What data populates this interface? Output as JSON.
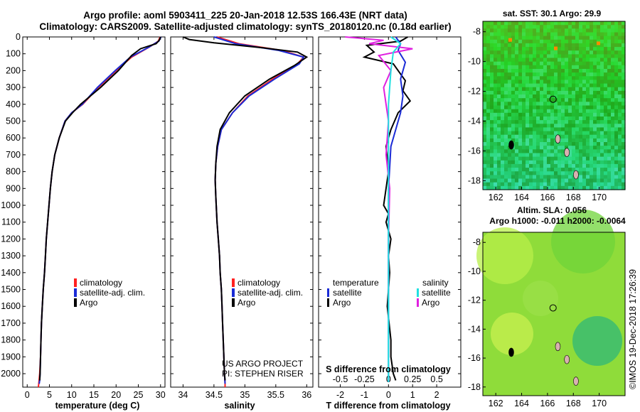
{
  "header": {
    "line1": "Argo profile: aoml 5903411_225 20-Jan-2018 12.53S 166.43E (NRT data)",
    "line2": "Climatology: CARS2009. Satellite-adjusted climatology: synTS_20180120.nc (0.18d earlier)"
  },
  "colors": {
    "climatology": "#ff2020",
    "satellite": "#1a2bd6",
    "argo": "#000000",
    "argo_salinity_diff": "#e020e0",
    "satellite_salinity_diff": "#20e0e0"
  },
  "chart_data": [
    {
      "type": "line",
      "id": "temperature",
      "xlabel": "temperature (deg C)",
      "ylabel": "",
      "xlim": [
        -1,
        31
      ],
      "ylim": [
        2080,
        0
      ],
      "xticks": [
        0,
        5,
        10,
        15,
        20,
        25,
        30
      ],
      "yticks": [
        0,
        100,
        200,
        300,
        400,
        500,
        600,
        700,
        800,
        900,
        1000,
        1100,
        1200,
        1300,
        1400,
        1500,
        1600,
        1700,
        1800,
        1900,
        2000
      ],
      "legend": [
        "climatology",
        "satellite-adj. clim.",
        "Argo"
      ],
      "series": [
        {
          "name": "climatology",
          "color": "#ff2020",
          "x": [
            29.9,
            29.5,
            27.5,
            23.5,
            20,
            16,
            12.5,
            10,
            8.5,
            7.2,
            6.2,
            5.6,
            5.2,
            4.9,
            4.6,
            4.3,
            4.1,
            3.9,
            3.6,
            3.4,
            3.2,
            3.1,
            3.0,
            2.8,
            2.6,
            2.5
          ],
          "y": [
            0,
            25,
            60,
            120,
            200,
            300,
            400,
            450,
            500,
            600,
            700,
            800,
            900,
            1000,
            1100,
            1200,
            1300,
            1400,
            1500,
            1600,
            1700,
            1800,
            1900,
            2000,
            2060,
            2080
          ]
        },
        {
          "name": "satellite-adj. clim.",
          "color": "#1a2bd6",
          "x": [
            30.1,
            29.6,
            27.4,
            23.2,
            19.8,
            15.8,
            12.4,
            10,
            8.5,
            7.2,
            6.2,
            5.6,
            5.2,
            4.9,
            4.6,
            4.3,
            4.1,
            3.9,
            3.6,
            3.4,
            3.2,
            3.1,
            3.0,
            2.9,
            2.8,
            2.7
          ],
          "y": [
            0,
            25,
            60,
            120,
            200,
            300,
            400,
            450,
            500,
            600,
            700,
            800,
            900,
            1000,
            1100,
            1200,
            1300,
            1400,
            1500,
            1600,
            1700,
            1800,
            1900,
            2000,
            2040,
            2060
          ]
        },
        {
          "name": "Argo",
          "color": "#000000",
          "x": [
            30.0,
            29.7,
            29.0,
            25.5,
            23.5,
            20.5,
            16.5,
            12.0,
            10.2,
            8.6,
            7.2,
            6.2,
            5.6,
            5.2,
            4.9,
            4.6,
            4.3,
            4.1,
            3.9,
            3.6,
            3.4,
            3.2,
            3.1,
            3.0,
            2.9,
            2.8
          ],
          "y": [
            0,
            20,
            40,
            70,
            110,
            200,
            300,
            400,
            450,
            500,
            600,
            700,
            800,
            900,
            1000,
            1100,
            1200,
            1300,
            1400,
            1500,
            1600,
            1700,
            1800,
            1900,
            2000,
            2040
          ]
        }
      ]
    },
    {
      "type": "line",
      "id": "salinity",
      "xlabel": "salinity",
      "ylabel": "",
      "xlim": [
        33.8,
        36.1
      ],
      "ylim": [
        2080,
        0
      ],
      "xticks": [
        34,
        34.5,
        35,
        35.5,
        36
      ],
      "legend": [
        "climatology",
        "satellite-adj. clim.",
        "Argo"
      ],
      "annotation": [
        "US ARGO PROJECT",
        "PI: STEPHEN RISER"
      ],
      "series": [
        {
          "name": "climatology",
          "color": "#ff2020",
          "x": [
            34.55,
            34.9,
            35.6,
            35.95,
            35.85,
            35.45,
            35.05,
            34.8,
            34.62,
            34.56,
            34.53,
            34.52,
            34.53,
            34.55,
            34.57,
            34.59,
            34.6,
            34.62,
            34.63,
            34.64,
            34.65,
            34.66,
            34.67,
            34.68,
            34.68
          ],
          "y": [
            0,
            40,
            80,
            120,
            160,
            250,
            350,
            450,
            550,
            650,
            750,
            850,
            950,
            1100,
            1200,
            1300,
            1400,
            1500,
            1600,
            1700,
            1800,
            1900,
            2000,
            2060,
            2080
          ]
        },
        {
          "name": "satellite-adj. clim.",
          "color": "#1a2bd6",
          "x": [
            34.5,
            34.85,
            35.55,
            35.95,
            35.88,
            35.48,
            35.07,
            34.8,
            34.62,
            34.56,
            34.53,
            34.52,
            34.53,
            34.55,
            34.57,
            34.59,
            34.6,
            34.62,
            34.63,
            34.64,
            34.65,
            34.66,
            34.67,
            34.68
          ],
          "y": [
            0,
            40,
            80,
            120,
            160,
            250,
            350,
            450,
            550,
            650,
            750,
            850,
            950,
            1100,
            1200,
            1300,
            1400,
            1500,
            1600,
            1700,
            1800,
            1900,
            2000,
            2060
          ]
        },
        {
          "name": "Argo",
          "color": "#000000",
          "x": [
            34.0,
            34.1,
            34.5,
            35.3,
            35.85,
            36.0,
            35.8,
            35.4,
            35.0,
            34.75,
            34.6,
            34.55,
            34.53,
            34.52,
            34.53,
            34.55,
            34.57,
            34.59,
            34.6,
            34.62,
            34.63,
            34.64,
            34.65,
            34.66,
            34.67,
            34.68
          ],
          "y": [
            0,
            15,
            35,
            65,
            90,
            120,
            170,
            250,
            350,
            450,
            550,
            650,
            750,
            850,
            950,
            1100,
            1200,
            1300,
            1400,
            1500,
            1600,
            1700,
            1800,
            1900,
            2000,
            2040
          ]
        }
      ]
    },
    {
      "type": "line",
      "id": "difference",
      "xlabel": "T difference from climatology",
      "xlabel2": "S difference from climatology",
      "ylabel": "",
      "xlim": [
        -2.9,
        3.0
      ],
      "ylim": [
        2080,
        0
      ],
      "xticks": [
        -2,
        -1,
        0,
        1,
        2
      ],
      "xticks_salinity": [
        "-0.5",
        "-0.25",
        "0",
        "0.25",
        "0.5"
      ],
      "legend_temperature": {
        "title": "temperature",
        "items": [
          "satellite",
          "Argo"
        ]
      },
      "legend_salinity": {
        "title": "salinity",
        "items": [
          "satellite",
          "Argo"
        ]
      },
      "series": [
        {
          "name": "Argo temperature diff",
          "color": "#000000",
          "x": [
            0.8,
            0.5,
            -0.9,
            -0.6,
            -1.0,
            0.2,
            0.4,
            0.7,
            0.6,
            0.9,
            0.4,
            0.1,
            -0.1,
            0,
            -0.1,
            -0.2,
            0,
            -0.1,
            0.1,
            0,
            0.05,
            0,
            -0.05,
            0.1,
            0.1,
            0.2,
            0.3
          ],
          "y": [
            0,
            25,
            50,
            90,
            120,
            160,
            200,
            260,
            320,
            380,
            450,
            550,
            650,
            800,
            900,
            1000,
            1050,
            1100,
            1200,
            1300,
            1400,
            1500,
            1600,
            1800,
            1900,
            2000,
            2040
          ]
        },
        {
          "name": "satellite temperature diff",
          "color": "#1a2bd6",
          "x": [
            0.3,
            0.5,
            0.4,
            0.7,
            0.5,
            0.6,
            0.5,
            0.3,
            0.1,
            0,
            0,
            0,
            0
          ],
          "y": [
            0,
            40,
            80,
            150,
            250,
            350,
            450,
            550,
            650,
            900,
            1300,
            1700,
            2050
          ]
        },
        {
          "name": "Argo salinity diff",
          "color": "#e020e0",
          "x": [
            -1.8,
            -0.2,
            -0.8,
            1.0,
            -0.4,
            0.1,
            -0.2,
            -0.1,
            0,
            -0.1,
            0.05,
            0,
            0
          ],
          "y": [
            0,
            20,
            40,
            70,
            110,
            200,
            300,
            400,
            500,
            700,
            900,
            1200,
            1500
          ]
        },
        {
          "name": "satellite salinity diff",
          "color": "#20e0e0",
          "x": [
            0.1,
            0.5,
            0.2,
            0.1,
            0,
            0,
            0,
            0,
            0,
            0
          ],
          "y": [
            0,
            40,
            90,
            200,
            400,
            700,
            1000,
            1400,
            1800,
            2050
          ]
        }
      ]
    },
    {
      "type": "heatmap",
      "id": "sst-map",
      "title": "sat. SST: 30.1 Argo: 29.9",
      "xticks": [
        162,
        164,
        166,
        168,
        170
      ],
      "yticks": [
        -8,
        -10,
        -12,
        -14,
        -16,
        -18
      ],
      "xlim": [
        161,
        172
      ],
      "ylim": [
        -18.6,
        -7.3
      ],
      "marker": {
        "lon": 166.43,
        "lat": -12.53
      }
    },
    {
      "type": "heatmap",
      "id": "sla-map",
      "title": "Altim. SLA: 0.056",
      "subtitle": "Argo h1000: -0.011 h2000: -0.0064",
      "xticks": [
        162,
        164,
        166,
        168,
        170
      ],
      "yticks": [
        -8,
        -10,
        -12,
        -14,
        -16,
        -18
      ],
      "xlim": [
        161,
        172
      ],
      "ylim": [
        -18.6,
        -7.3
      ],
      "marker": {
        "lon": 166.43,
        "lat": -12.53
      }
    }
  ],
  "credit": "©IMOS 19-Dec-2018 17:26:39"
}
